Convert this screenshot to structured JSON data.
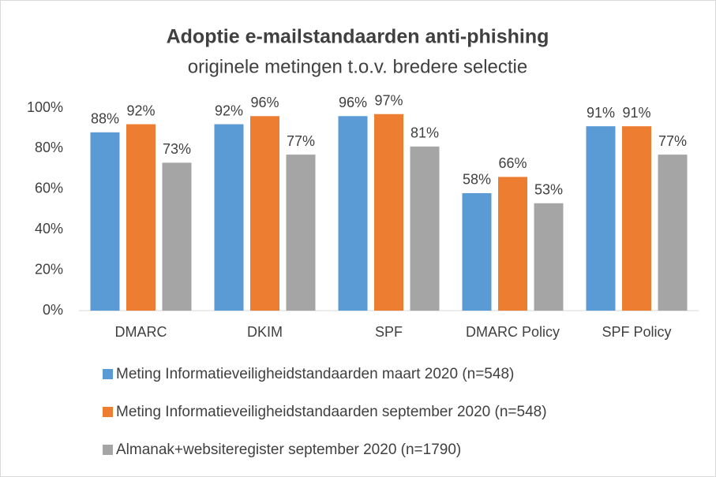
{
  "chart_data": {
    "type": "bar",
    "title": "Adoptie e-mailstandaarden anti-phishing",
    "subtitle": "originele metingen t.o.v. bredere selectie",
    "categories": [
      "DMARC",
      "DKIM",
      "SPF",
      "DMARC Policy",
      "SPF Policy"
    ],
    "series": [
      {
        "name": "Meting Informatieveiligheidstandaarden maart 2020 (n=548)",
        "color": "#5b9bd5",
        "values": [
          88,
          92,
          96,
          58,
          91
        ],
        "value_labels": [
          "88%",
          "92%",
          "96%",
          "58%",
          "91%"
        ]
      },
      {
        "name": "Meting Informatieveiligheidstandaarden september 2020 (n=548)",
        "color": "#ed7d31",
        "values": [
          92,
          96,
          97,
          66,
          91
        ],
        "value_labels": [
          "92%",
          "96%",
          "97%",
          "66%",
          "91%"
        ]
      },
      {
        "name": "Almanak+websiteregister september 2020 (n=1790)",
        "color": "#a5a5a5",
        "values": [
          73,
          77,
          81,
          53,
          77
        ],
        "value_labels": [
          "73%",
          "77%",
          "81%",
          "53%",
          "77%"
        ]
      }
    ],
    "ylim": [
      0,
      100
    ],
    "yticks": [
      {
        "value": 0,
        "label": "0%"
      },
      {
        "value": 20,
        "label": "20%"
      },
      {
        "value": 40,
        "label": "40%"
      },
      {
        "value": 60,
        "label": "60%"
      },
      {
        "value": 80,
        "label": "80%"
      },
      {
        "value": 100,
        "label": "100%"
      }
    ],
    "grid": false,
    "legend": "bottom"
  }
}
